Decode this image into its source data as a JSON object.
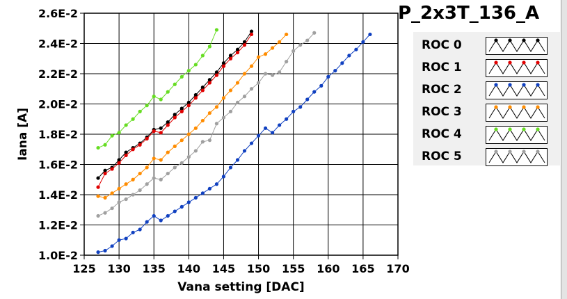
{
  "chart_data": {
    "type": "line",
    "title": "P_2x3T_136_A",
    "xlabel": "Vana setting [DAC]",
    "ylabel": "Iana [A]",
    "xlim": [
      125,
      170
    ],
    "ylim": [
      0.01,
      0.026
    ],
    "x_ticks": [
      125,
      130,
      135,
      140,
      145,
      150,
      155,
      160,
      165,
      170
    ],
    "x_tick_labels": [
      "125",
      "130",
      "135",
      "140",
      "145",
      "150",
      "155",
      "160",
      "165",
      "170"
    ],
    "y_ticks": [
      0.01,
      0.012,
      0.014,
      0.016,
      0.018,
      0.02,
      0.022,
      0.024,
      0.026
    ],
    "y_tick_labels": [
      "1.0E-2",
      "1.2E-2",
      "1.4E-2",
      "1.6E-2",
      "1.8E-2",
      "2.0E-2",
      "2.2E-2",
      "2.4E-2",
      "2.6E-2"
    ],
    "grid": true,
    "legend_position": "right",
    "series": [
      {
        "name": "ROC 0",
        "color": "#000000",
        "x": [
          127,
          128,
          129,
          130,
          131,
          132,
          133,
          134,
          135,
          136,
          137,
          138,
          139,
          140,
          141,
          142,
          143,
          144,
          145,
          146,
          147,
          148,
          149
        ],
        "y": [
          0.0151,
          0.0156,
          0.0158,
          0.0163,
          0.0168,
          0.0171,
          0.0174,
          0.0178,
          0.0183,
          0.0184,
          0.0188,
          0.0193,
          0.0197,
          0.0201,
          0.0206,
          0.0211,
          0.0216,
          0.0221,
          0.0227,
          0.0232,
          0.0236,
          0.0241,
          0.0248
        ]
      },
      {
        "name": "ROC 1",
        "color": "#e00000",
        "x": [
          127,
          128,
          129,
          130,
          131,
          132,
          133,
          134,
          135,
          136,
          137,
          138,
          139,
          140,
          141,
          142,
          143,
          144,
          145,
          146,
          147,
          148,
          149
        ],
        "y": [
          0.0145,
          0.0154,
          0.0157,
          0.0161,
          0.0166,
          0.017,
          0.0173,
          0.0177,
          0.0182,
          0.0181,
          0.0186,
          0.0191,
          0.0195,
          0.0199,
          0.0204,
          0.0209,
          0.0214,
          0.0219,
          0.0225,
          0.023,
          0.0234,
          0.0239,
          0.0246
        ]
      },
      {
        "name": "ROC 2",
        "color": "#1040c0",
        "x": [
          127,
          128,
          129,
          130,
          131,
          132,
          133,
          134,
          135,
          136,
          137,
          138,
          139,
          140,
          141,
          142,
          143,
          144,
          145,
          146,
          147,
          148,
          149,
          150,
          151,
          152,
          153,
          154,
          155,
          156,
          157,
          158,
          159,
          160,
          161,
          162,
          163,
          164,
          165,
          166
        ],
        "y": [
          0.0102,
          0.0103,
          0.0106,
          0.011,
          0.0111,
          0.0115,
          0.0117,
          0.0122,
          0.0126,
          0.0123,
          0.0126,
          0.0129,
          0.0132,
          0.0135,
          0.0138,
          0.0141,
          0.0144,
          0.0147,
          0.0152,
          0.0158,
          0.0163,
          0.0169,
          0.0174,
          0.0179,
          0.0184,
          0.0181,
          0.0186,
          0.019,
          0.0195,
          0.0198,
          0.0203,
          0.0208,
          0.0212,
          0.0218,
          0.0222,
          0.0227,
          0.0232,
          0.0236,
          0.0241,
          0.0246
        ]
      },
      {
        "name": "ROC 3",
        "color": "#ff8c00",
        "x": [
          127,
          128,
          129,
          130,
          131,
          132,
          133,
          134,
          135,
          136,
          137,
          138,
          139,
          140,
          141,
          142,
          143,
          144,
          145,
          146,
          147,
          148,
          149,
          150,
          151,
          152,
          153,
          154
        ],
        "y": [
          0.0139,
          0.0138,
          0.0141,
          0.0144,
          0.0147,
          0.015,
          0.0154,
          0.0158,
          0.0164,
          0.0163,
          0.0168,
          0.0172,
          0.0176,
          0.018,
          0.0184,
          0.0189,
          0.0194,
          0.0198,
          0.0204,
          0.0209,
          0.0214,
          0.022,
          0.0225,
          0.0231,
          0.0233,
          0.0237,
          0.0241,
          0.0246
        ]
      },
      {
        "name": "ROC 4",
        "color": "#66dd22",
        "x": [
          127,
          128,
          129,
          130,
          131,
          132,
          133,
          134,
          135,
          136,
          137,
          138,
          139,
          140,
          141,
          142,
          143,
          144
        ],
        "y": [
          0.0171,
          0.0173,
          0.0179,
          0.0181,
          0.0186,
          0.019,
          0.0195,
          0.0199,
          0.0205,
          0.0203,
          0.0208,
          0.0213,
          0.0218,
          0.0222,
          0.0226,
          0.0232,
          0.0238,
          0.0249
        ]
      },
      {
        "name": "ROC 5",
        "color": "#a0a0a0",
        "x": [
          127,
          128,
          129,
          130,
          131,
          132,
          133,
          134,
          135,
          136,
          137,
          138,
          139,
          140,
          141,
          142,
          143,
          144,
          145,
          146,
          147,
          148,
          149,
          150,
          151,
          152,
          153,
          154,
          155,
          156,
          157,
          158
        ],
        "y": [
          0.0126,
          0.0128,
          0.0131,
          0.0135,
          0.0137,
          0.014,
          0.0143,
          0.0147,
          0.0151,
          0.015,
          0.0154,
          0.0158,
          0.0161,
          0.0165,
          0.0169,
          0.0175,
          0.0176,
          0.0187,
          0.0191,
          0.0195,
          0.0201,
          0.0205,
          0.021,
          0.0214,
          0.022,
          0.0219,
          0.0221,
          0.0228,
          0.0235,
          0.0239,
          0.0242,
          0.0247
        ]
      }
    ]
  }
}
